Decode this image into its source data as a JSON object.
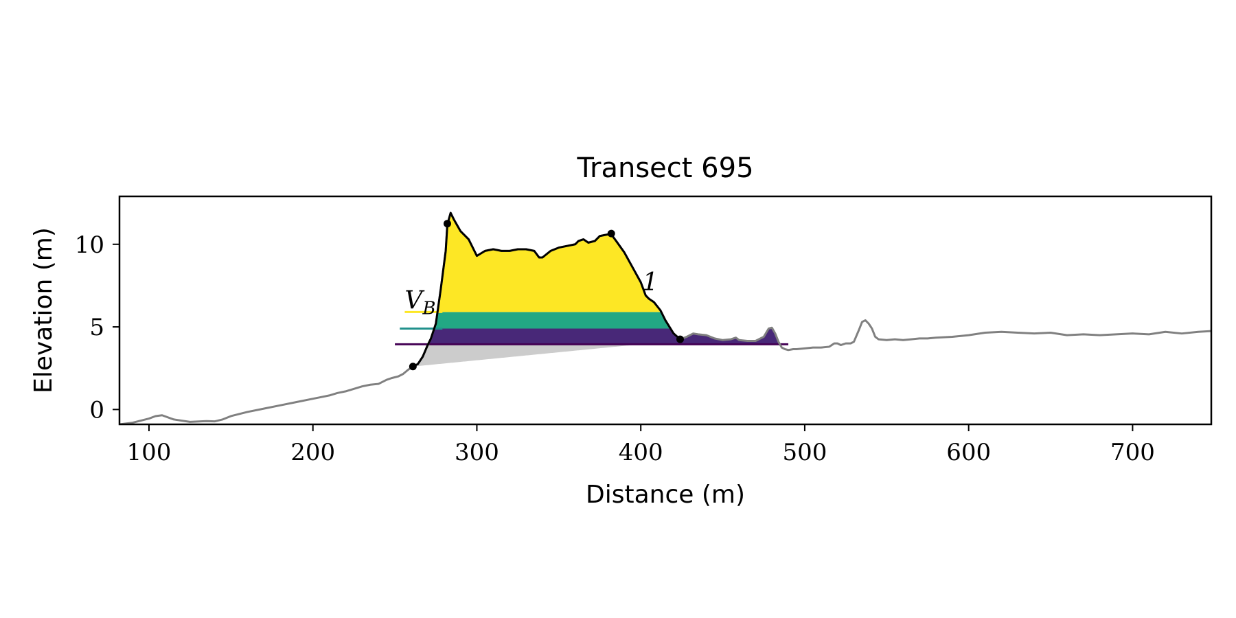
{
  "chart_data": {
    "type": "area",
    "title": "Transect 695",
    "xlabel": "Distance (m)",
    "ylabel": "Elevation (m)",
    "xlim": [
      82,
      748
    ],
    "ylim": [
      -0.9,
      12.9
    ],
    "xticks": [
      100,
      200,
      300,
      400,
      500,
      600,
      700
    ],
    "yticks": [
      0,
      5,
      10
    ],
    "grid": false,
    "annotations": [
      {
        "text": "V",
        "sub": "B",
        "x": 256,
        "y": 6.1
      },
      {
        "text": "1",
        "x": 401,
        "y": 7.2
      }
    ],
    "profile": {
      "x": [
        82,
        90,
        100,
        104,
        108,
        115,
        125,
        135,
        140,
        145,
        150,
        160,
        170,
        180,
        190,
        200,
        205,
        210,
        215,
        220,
        225,
        230,
        235,
        240,
        245,
        248,
        252,
        255,
        258,
        261,
        264,
        267,
        270,
        272,
        275,
        278,
        281,
        282,
        284,
        286,
        290,
        295,
        300,
        305,
        310,
        315,
        320,
        325,
        330,
        335,
        338,
        340,
        345,
        350,
        355,
        360,
        362,
        365,
        368,
        372,
        375,
        380,
        382,
        385,
        390,
        395,
        400,
        403,
        405,
        408,
        412,
        415,
        420,
        424,
        428,
        432,
        435,
        440,
        445,
        450,
        455,
        458,
        460,
        465,
        470,
        475,
        478,
        480,
        482,
        484,
        486,
        488,
        490,
        493,
        495,
        500,
        505,
        510,
        515,
        518,
        520,
        522,
        525,
        528,
        530,
        533,
        535,
        537,
        539,
        541,
        543,
        545,
        550,
        555,
        560,
        565,
        570,
        575,
        580,
        590,
        600,
        610,
        620,
        630,
        640,
        650,
        660,
        670,
        680,
        690,
        700,
        710,
        720,
        730,
        740,
        748
      ],
      "y": [
        -0.9,
        -0.8,
        -0.55,
        -0.4,
        -0.35,
        -0.6,
        -0.75,
        -0.7,
        -0.72,
        -0.6,
        -0.4,
        -0.15,
        0.05,
        0.25,
        0.45,
        0.65,
        0.75,
        0.85,
        1.0,
        1.1,
        1.25,
        1.4,
        1.5,
        1.55,
        1.8,
        1.9,
        2.0,
        2.15,
        2.4,
        2.6,
        2.75,
        3.2,
        3.9,
        4.3,
        5.2,
        7.3,
        9.6,
        11.2,
        11.9,
        11.5,
        10.8,
        10.3,
        9.3,
        9.6,
        9.7,
        9.6,
        9.6,
        9.7,
        9.7,
        9.6,
        9.2,
        9.2,
        9.6,
        9.8,
        9.9,
        10.0,
        10.2,
        10.3,
        10.1,
        10.2,
        10.5,
        10.6,
        10.6,
        10.2,
        9.5,
        8.6,
        7.7,
        6.9,
        6.7,
        6.5,
        6.0,
        5.4,
        4.6,
        4.25,
        4.4,
        4.6,
        4.55,
        4.5,
        4.3,
        4.2,
        4.25,
        4.35,
        4.2,
        4.15,
        4.15,
        4.4,
        4.9,
        4.95,
        4.6,
        4.1,
        3.75,
        3.65,
        3.6,
        3.65,
        3.65,
        3.7,
        3.75,
        3.75,
        3.8,
        4.0,
        4.0,
        3.9,
        4.0,
        4.0,
        4.1,
        4.8,
        5.3,
        5.4,
        5.2,
        4.9,
        4.4,
        4.25,
        4.2,
        4.25,
        4.2,
        4.25,
        4.3,
        4.3,
        4.35,
        4.4,
        4.5,
        4.65,
        4.7,
        4.65,
        4.6,
        4.65,
        4.5,
        4.55,
        4.5,
        4.55,
        4.6,
        4.55,
        4.7,
        4.6,
        4.7,
        4.75
      ]
    },
    "dune_profile": {
      "x": [
        261,
        264,
        267,
        270,
        272,
        275,
        278,
        281,
        282,
        284,
        286,
        290,
        295,
        300,
        305,
        310,
        315,
        320,
        325,
        330,
        335,
        338,
        340,
        345,
        350,
        355,
        360,
        362,
        365,
        368,
        372,
        375,
        380,
        382,
        385,
        390,
        395,
        400,
        403,
        405,
        408,
        412,
        415,
        420,
        424
      ],
      "y": [
        2.6,
        2.75,
        3.2,
        3.9,
        4.3,
        5.2,
        7.3,
        9.6,
        11.2,
        11.9,
        11.5,
        10.8,
        10.3,
        9.3,
        9.6,
        9.7,
        9.6,
        9.6,
        9.7,
        9.7,
        9.6,
        9.2,
        9.2,
        9.6,
        9.8,
        9.9,
        10.0,
        10.2,
        10.3,
        10.1,
        10.2,
        10.5,
        10.6,
        10.6,
        10.2,
        9.5,
        8.6,
        7.7,
        6.9,
        6.7,
        6.5,
        6.0,
        5.4,
        4.6,
        4.25
      ]
    },
    "markers": [
      {
        "x": 261,
        "y": 2.6
      },
      {
        "x": 282,
        "y": 11.25
      },
      {
        "x": 382,
        "y": 10.65
      },
      {
        "x": 424,
        "y": 4.25
      }
    ],
    "base_line": {
      "x": [
        261,
        400
      ],
      "y": [
        2.6,
        3.95
      ]
    },
    "levels": [
      {
        "y": 5.9,
        "color": "#fde725",
        "line_x": [
          256,
          279
        ]
      },
      {
        "y": 4.9,
        "color": "#21918c",
        "line_x": [
          253,
          279
        ]
      },
      {
        "y": 3.95,
        "color": "#440154",
        "line_x": [
          250,
          490
        ]
      }
    ],
    "fills": {
      "base": "#cccccc",
      "band_low": "#482878",
      "band_mid": "#22a884",
      "band_top": "#fde725"
    },
    "line_colors": {
      "profile": "#808080",
      "dune": "#000000"
    }
  }
}
